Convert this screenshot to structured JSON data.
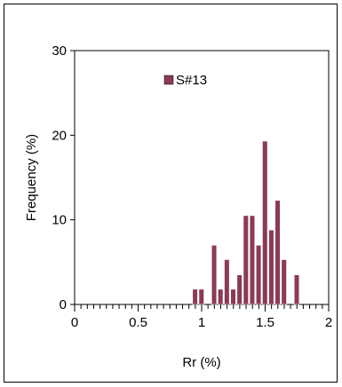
{
  "chart_data": {
    "type": "bar",
    "xlabel": "Rr (%)",
    "ylabel": "Frequency (%)",
    "xlim": [
      0,
      2
    ],
    "ylim": [
      0,
      30
    ],
    "xticks": [
      "0",
      "0.5",
      "1",
      "1.5",
      "2"
    ],
    "yticks": [
      "0",
      "10",
      "20",
      "30"
    ],
    "bin_width": 0.05,
    "series": [
      {
        "name": "S#13",
        "color": "#8b3a57",
        "bins": [
          {
            "x": 0.95,
            "value": 1.8
          },
          {
            "x": 1.0,
            "value": 1.8
          },
          {
            "x": 1.1,
            "value": 7.0
          },
          {
            "x": 1.15,
            "value": 1.8
          },
          {
            "x": 1.2,
            "value": 5.3
          },
          {
            "x": 1.25,
            "value": 1.8
          },
          {
            "x": 1.3,
            "value": 3.5
          },
          {
            "x": 1.35,
            "value": 10.5
          },
          {
            "x": 1.4,
            "value": 10.5
          },
          {
            "x": 1.45,
            "value": 7.0
          },
          {
            "x": 1.5,
            "value": 19.3
          },
          {
            "x": 1.55,
            "value": 8.8
          },
          {
            "x": 1.6,
            "value": 12.3
          },
          {
            "x": 1.65,
            "value": 5.3
          },
          {
            "x": 1.75,
            "value": 3.5
          }
        ]
      }
    ],
    "legend_position": "top-left",
    "grid": false
  }
}
